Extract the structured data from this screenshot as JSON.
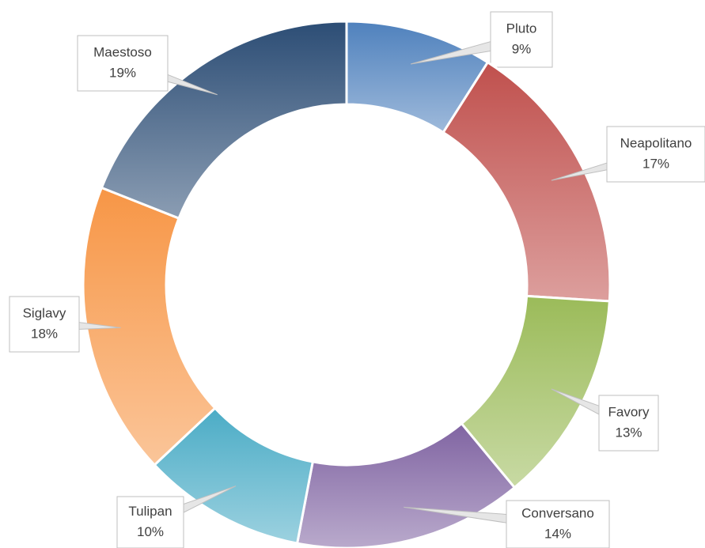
{
  "chart_data": {
    "type": "donut",
    "categories": [
      "Pluto",
      "Neapolitano",
      "Favory",
      "Conversano",
      "Tulipan",
      "Siglavy",
      "Maestoso"
    ],
    "values": [
      9,
      17,
      13,
      14,
      10,
      18,
      19
    ],
    "value_labels": [
      "9%",
      "17%",
      "13%",
      "14%",
      "10%",
      "18%",
      "19%"
    ],
    "colors": [
      "#4f81bd",
      "#c0504d",
      "#9bbb59",
      "#8064a2",
      "#4bacc6",
      "#f79646",
      "#2c4d75"
    ]
  }
}
